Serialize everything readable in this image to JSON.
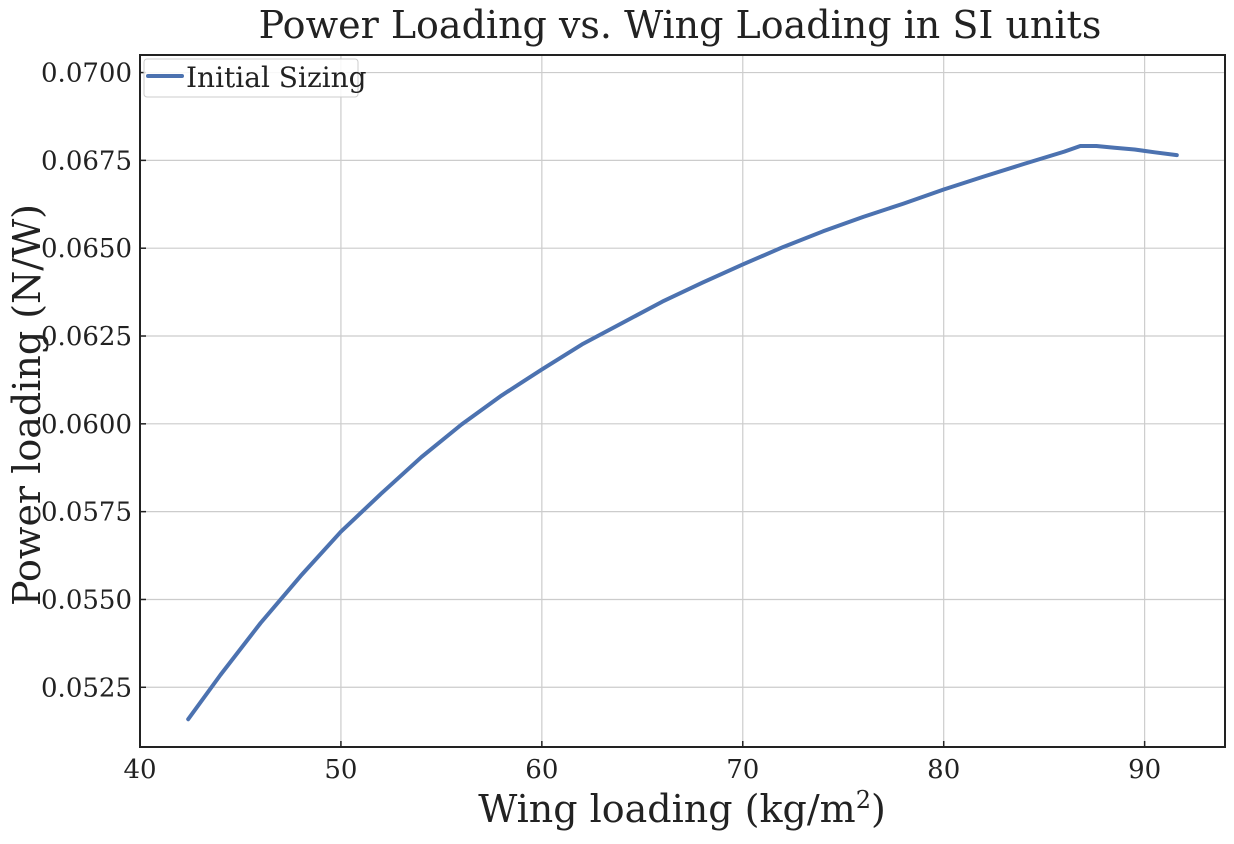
{
  "chart_data": {
    "type": "line",
    "title": "Power Loading vs. Wing Loading in SI units",
    "xlabel": "Wing loading (kg/m",
    "xlabel_superscript": "2",
    "xlabel_close": ")",
    "ylabel": "Power loading (N/W)",
    "xlim": [
      40,
      94
    ],
    "ylim": [
      0.0508,
      0.0705
    ],
    "xticks": [
      40,
      50,
      60,
      70,
      80,
      90
    ],
    "xtick_labels": [
      "40",
      "50",
      "60",
      "70",
      "80",
      "90"
    ],
    "yticks": [
      0.0525,
      0.055,
      0.0575,
      0.06,
      0.0625,
      0.065,
      0.0675,
      0.07
    ],
    "ytick_labels": [
      "0.0525",
      "0.0550",
      "0.0575",
      "0.0600",
      "0.0625",
      "0.0650",
      "0.0675",
      "0.0700"
    ],
    "grid": true,
    "legend_position": "top-left",
    "series": [
      {
        "name": "Initial Sizing",
        "color": "#4c72b0",
        "x": [
          42.4,
          44,
          46,
          48,
          50,
          52,
          54,
          56,
          58,
          60,
          62,
          64,
          66,
          68,
          70,
          72,
          74,
          76,
          78,
          80,
          82,
          84,
          86,
          86.8,
          87.6,
          88.5,
          89.5,
          90.5,
          91.6
        ],
        "y": [
          0.05159,
          0.05285,
          0.05433,
          0.05567,
          0.05693,
          0.05801,
          0.05905,
          0.05998,
          0.06081,
          0.06155,
          0.06226,
          0.06287,
          0.06348,
          0.06402,
          0.06454,
          0.06503,
          0.06548,
          0.06589,
          0.06627,
          0.06667,
          0.06704,
          0.0674,
          0.06775,
          0.06791,
          0.06791,
          0.06786,
          0.06781,
          0.06773,
          0.06765
        ]
      }
    ]
  }
}
